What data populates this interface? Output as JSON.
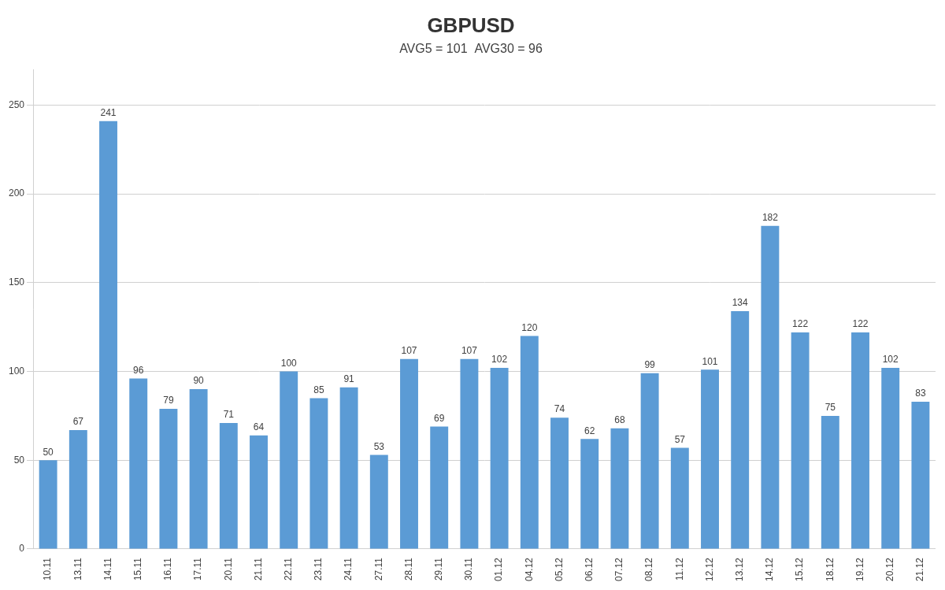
{
  "chart_data": {
    "type": "bar",
    "title": "GBPUSD",
    "subtitle": "AVG5 = 101  AVG30 = 96",
    "categories": [
      "10.11",
      "13.11",
      "14.11",
      "15.11",
      "16.11",
      "17.11",
      "20.11",
      "21.11",
      "22.11",
      "23.11",
      "24.11",
      "27.11",
      "28.11",
      "29.11",
      "30.11",
      "01.12",
      "04.12",
      "05.12",
      "06.12",
      "07.12",
      "08.12",
      "11.12",
      "12.12",
      "13.12",
      "14.12",
      "15.12",
      "18.12",
      "19.12",
      "20.12",
      "21.12"
    ],
    "values": [
      50,
      67,
      241,
      96,
      79,
      90,
      71,
      64,
      100,
      85,
      91,
      53,
      107,
      69,
      107,
      102,
      120,
      74,
      62,
      68,
      99,
      57,
      101,
      134,
      182,
      122,
      75,
      122,
      102,
      83
    ],
    "color": "#5B9BD5",
    "ylim": [
      0,
      270
    ],
    "yticks": [
      0,
      50,
      100,
      150,
      200,
      250
    ],
    "grid": true,
    "data_labels": true
  }
}
